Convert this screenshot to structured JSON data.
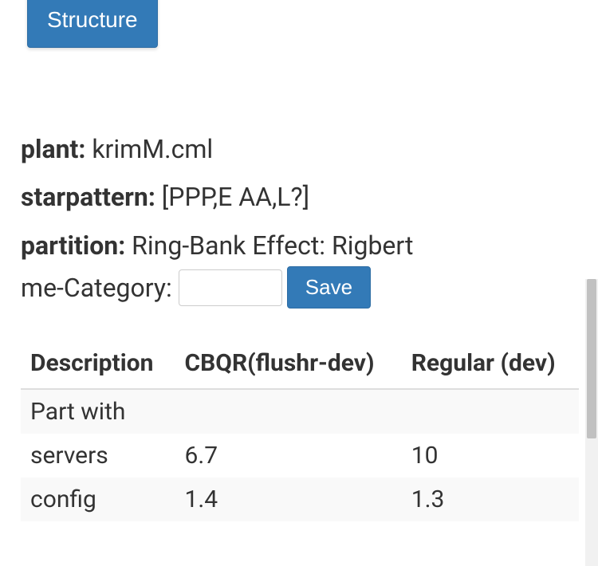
{
  "top_button": {
    "label": "Structure"
  },
  "fields": {
    "plant_label": "plant:",
    "plant_value": " krimM.cml",
    "starpattern_label": "starpattern:",
    "starpattern_value": " [PPP,E AA,L?]",
    "partition_label": "partition:",
    "partition_value": " Ring-Bank Effect: Rigbert"
  },
  "form": {
    "category_label": "me-Category:",
    "input_value": "",
    "save_label": "Save"
  },
  "table": {
    "columns": [
      "Description",
      "CBQR(flushr-dev)",
      "Regular (dev)"
    ],
    "rows": [
      {
        "desc": "Part with",
        "c1": "",
        "c2": ""
      },
      {
        "desc": "servers",
        "c1": "6.7",
        "c2": "10"
      },
      {
        "desc": "config",
        "c1": "1.4",
        "c2": "1.3"
      }
    ]
  },
  "colors": {
    "primary": "#337ab7",
    "primary_border": "#2e6da4",
    "text": "#333333",
    "border": "#dddddd",
    "stripe": "#f9f9f9"
  }
}
